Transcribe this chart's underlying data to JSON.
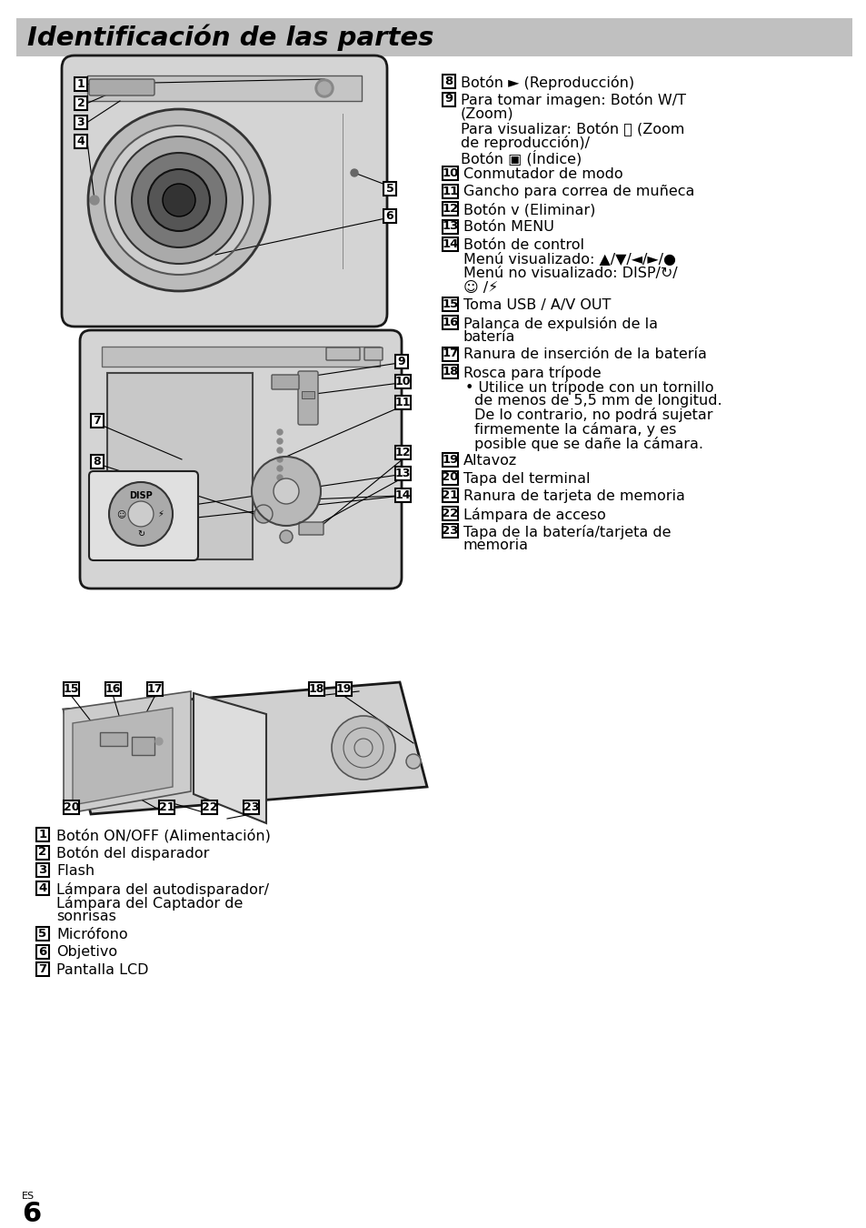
{
  "title": "Identificación de las partes",
  "title_bg": "#c0c0c0",
  "bg": "#ffffff",
  "fg": "#000000",
  "title_fontsize": 21,
  "body_fontsize": 11.5,
  "small_fontsize": 9,
  "right_items": [
    [
      "8",
      "Botón ► (Reproducción)",
      1
    ],
    [
      "9",
      "Para tomar imagen: Botón W/T\n(Zoom)\nPara visualizar: Botón 🔍 (Zoom\nde reproducción)/\nBotón ▣ (Índice)",
      5
    ],
    [
      "10",
      "Conmutador de modo",
      1
    ],
    [
      "11",
      "Gancho para correa de muñeca",
      1
    ],
    [
      "12",
      "Botón ᴠ (Eliminar)",
      1
    ],
    [
      "13",
      "Botón MENU",
      1
    ],
    [
      "14",
      "Botón de control\nMenú visualizado: ▲/▼/◄/►/●\nMenú no visualizado: DISP/↻/\n☺ /⚡",
      4
    ],
    [
      "15",
      "Toma USB / A/V OUT",
      1
    ],
    [
      "16",
      "Palanca de expulsión de la\nbatería",
      2
    ],
    [
      "17",
      "Ranura de inserción de la batería",
      1
    ],
    [
      "18",
      "Rosca para trípode\n• Utilice un trípode con un tornillo\n  de menos de 5,5 mm de longitud.\n  De lo contrario, no podrá sujetar\n  firmemente la cámara, y es\n  posible que se dañe la cámara.",
      6
    ],
    [
      "19",
      "Altavoz",
      1
    ],
    [
      "20",
      "Tapa del terminal",
      1
    ],
    [
      "21",
      "Ranura de tarjeta de memoria",
      1
    ],
    [
      "22",
      "Lámpara de acceso",
      1
    ],
    [
      "23",
      "Tapa de la batería/tarjeta de\nmemoria",
      2
    ]
  ],
  "left_items": [
    [
      "1",
      "Botón ON/OFF (Alimentación)",
      1
    ],
    [
      "2",
      "Botón del disparador",
      1
    ],
    [
      "3",
      "Flash",
      1
    ],
    [
      "4",
      "Lámpara del autodisparador/\nLámpara del Captador de\nsonrisas",
      3
    ],
    [
      "5",
      "Micrófono",
      1
    ],
    [
      "6",
      "Objetivo",
      1
    ],
    [
      "7",
      "Pantalla LCD",
      1
    ]
  ],
  "page_num": "6",
  "page_es": "ES"
}
